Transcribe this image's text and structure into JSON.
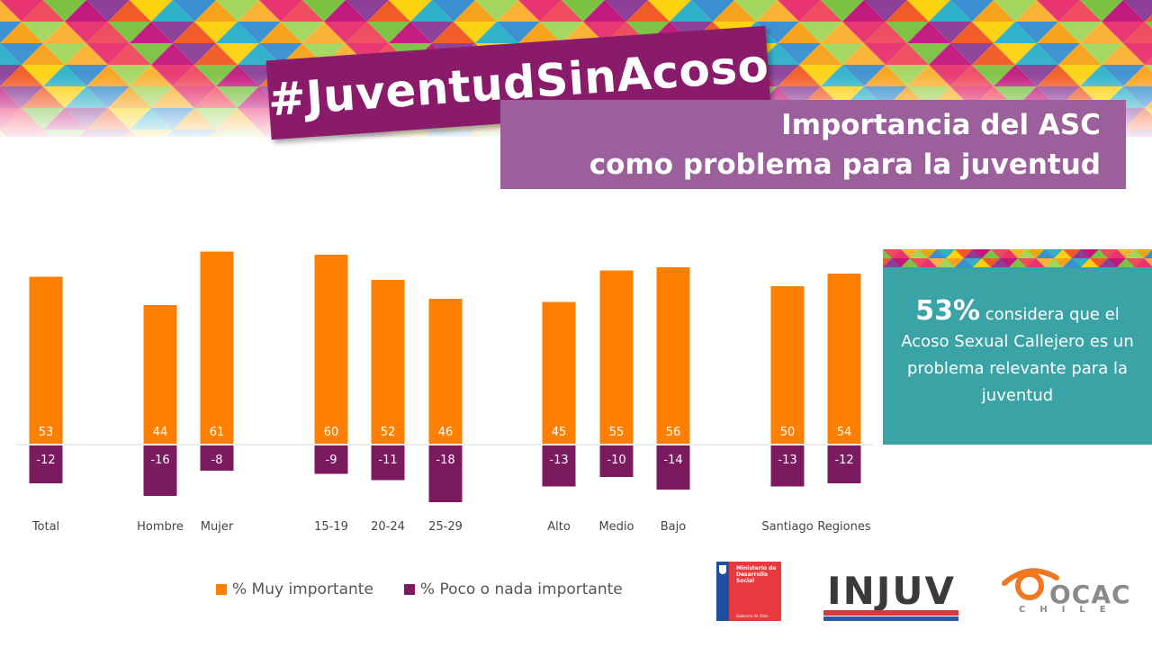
{
  "slide": {
    "hashtag": "#JuventudSinAcoso",
    "title_line1": "Importancia del ASC",
    "title_line2": "como problema para la juventud"
  },
  "callout": {
    "percent": "53%",
    "text": " considera que el Acoso Sexual Callejero es un problema relevante para la juventud"
  },
  "chart_data": {
    "type": "bar",
    "categories": [
      "Total",
      "Hombre",
      "Mujer",
      "15-19",
      "20-24",
      "25-29",
      "Alto",
      "Medio",
      "Bajo",
      "Santiago",
      "Regiones"
    ],
    "groups": [
      [
        "Total"
      ],
      [
        "Hombre",
        "Mujer"
      ],
      [
        "15-19",
        "20-24",
        "25-29"
      ],
      [
        "Alto",
        "Medio",
        "Bajo"
      ],
      [
        "Santiago",
        "Regiones"
      ]
    ],
    "series": [
      {
        "name": "% Muy importante",
        "color": "#ff8000",
        "values": [
          53,
          44,
          61,
          60,
          52,
          46,
          45,
          55,
          56,
          50,
          54
        ]
      },
      {
        "name": "% Poco o nada importante",
        "color": "#7b1a5e",
        "values": [
          -12,
          -16,
          -8,
          -9,
          -11,
          -18,
          -13,
          -10,
          -14,
          -13,
          -12
        ]
      }
    ],
    "title": "",
    "xlabel": "",
    "ylabel": "",
    "ylim": [
      -20,
      61
    ],
    "grid": false,
    "legend": "bottom"
  },
  "logos": {
    "ministerio": "Ministerio de Desarrollo Social",
    "ministerio_sub": "Gobierno de Chile",
    "injuv": "INJUV",
    "ocac": "OCAC",
    "ocac_sub": "CHILE"
  },
  "colors": {
    "accent_purple": "#8a1a6a",
    "title_box": "#9b5f9b",
    "callout_teal": "#3aa3a5"
  }
}
